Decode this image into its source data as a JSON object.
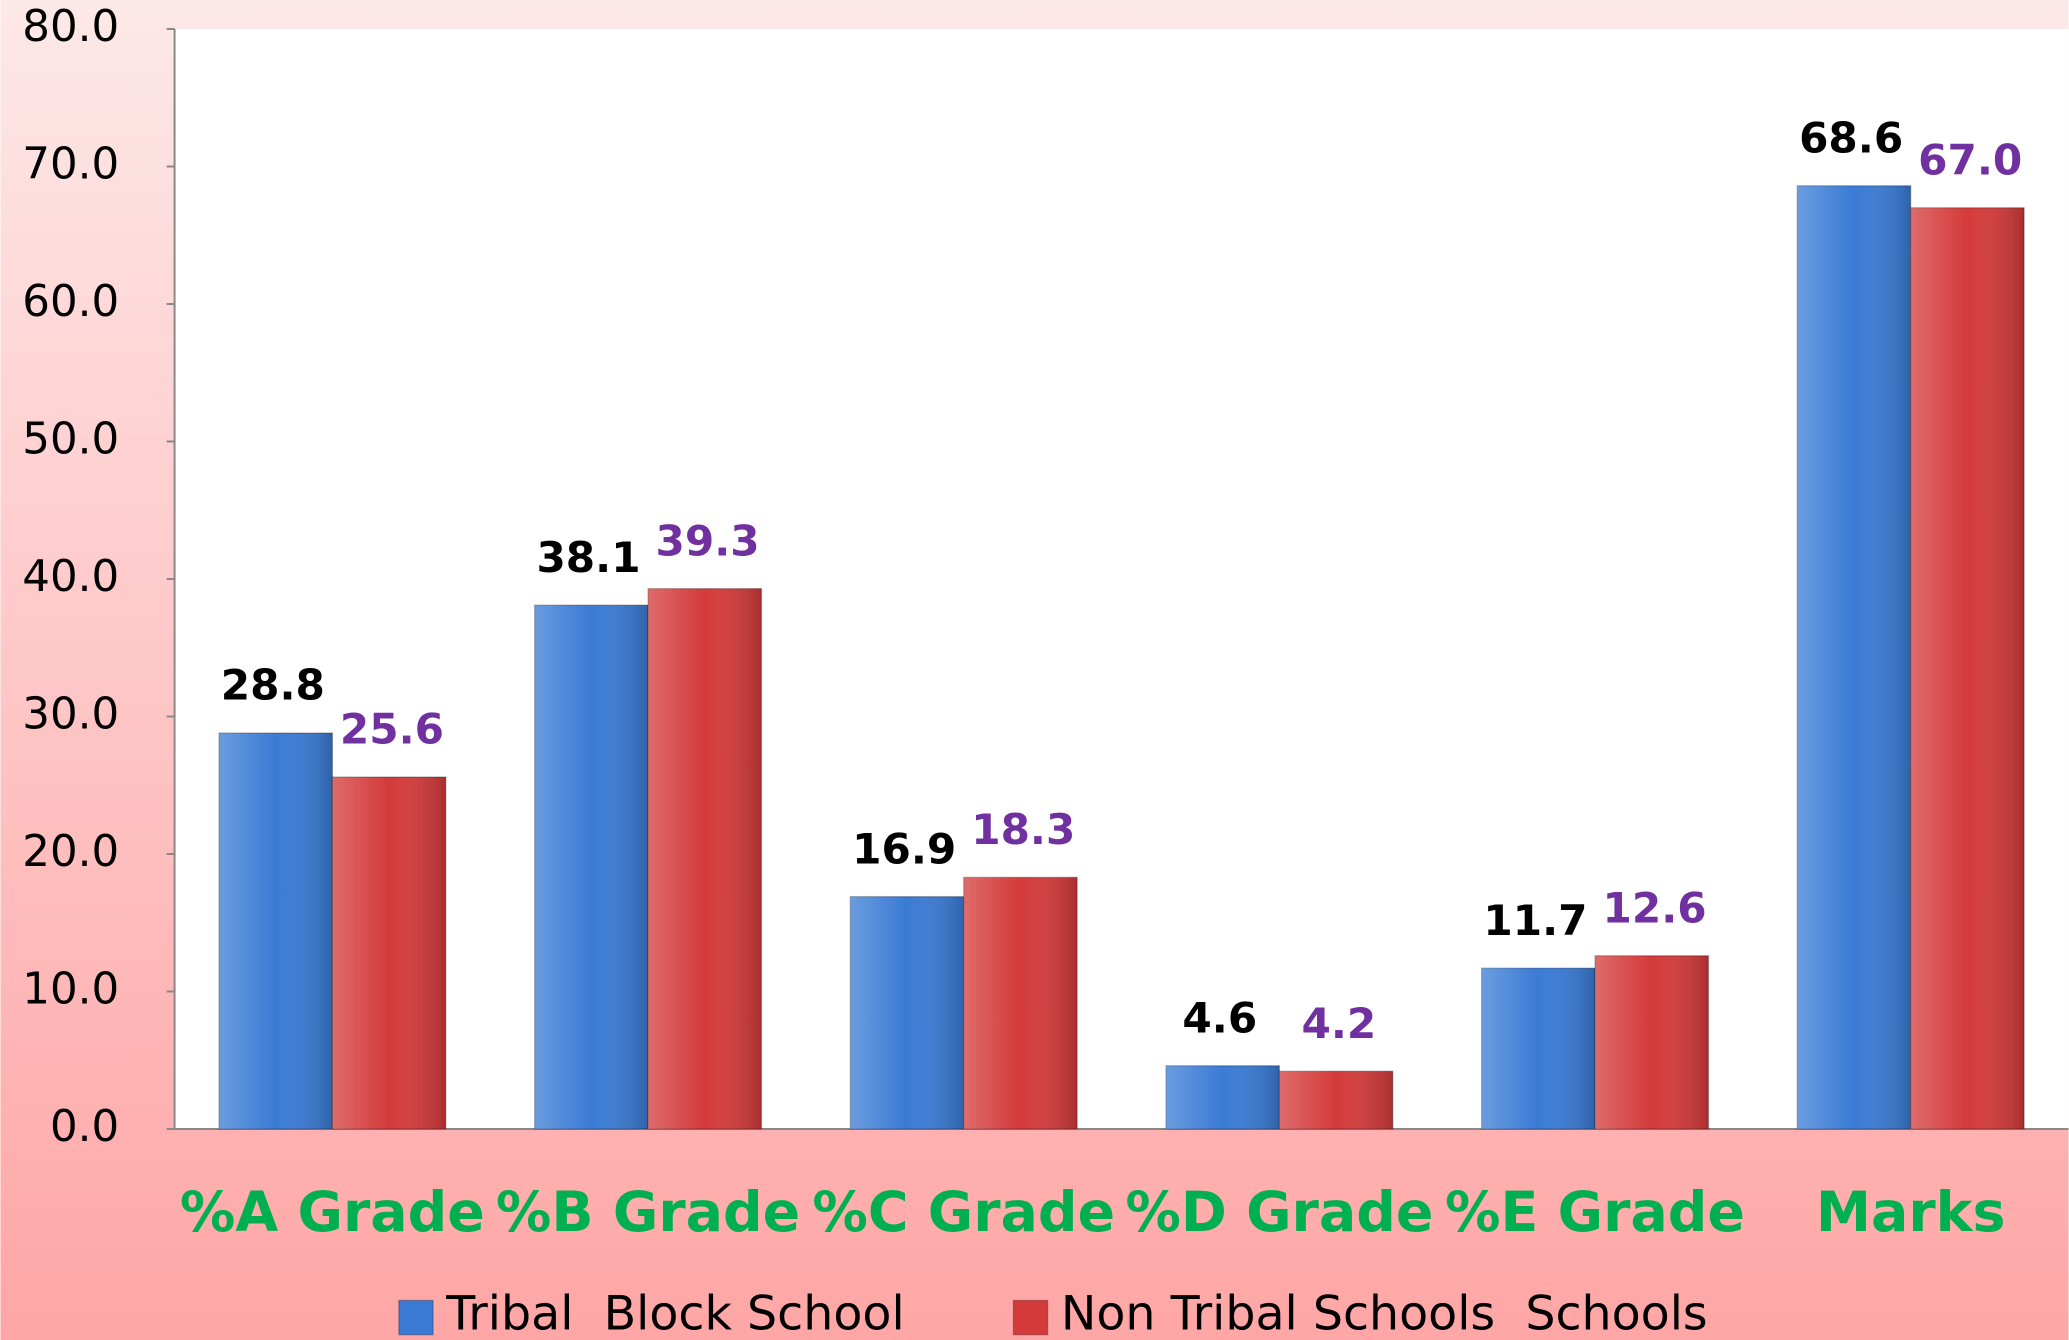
{
  "chart_data": {
    "type": "bar",
    "categories": [
      "%A Grade",
      "%B Grade",
      "%C Grade",
      "%D Grade",
      "%E Grade",
      "Marks"
    ],
    "series": [
      {
        "name": "Tribal  Block School",
        "color": "#3a7bd5",
        "label_color": "#000000",
        "values": [
          28.8,
          38.1,
          16.9,
          4.6,
          11.7,
          68.6
        ],
        "value_labels": [
          "28.8",
          "38.1",
          "16.9",
          "4.6",
          "11.7",
          "68.6"
        ]
      },
      {
        "name": "Non Tribal Schools  Schools",
        "color": "#d43a3a",
        "label_color": "#7030a0",
        "values": [
          25.6,
          39.3,
          18.3,
          4.2,
          12.6,
          67.0
        ],
        "value_labels": [
          "25.6",
          "39.3",
          "18.3",
          "4.2",
          "12.6",
          "67.0"
        ]
      }
    ],
    "ylim": [
      0,
      80
    ],
    "yticks": [
      {
        "value": 0,
        "label": "0.0"
      },
      {
        "value": 10,
        "label": "10.0"
      },
      {
        "value": 20,
        "label": "20.0"
      },
      {
        "value": 30,
        "label": "30.0"
      },
      {
        "value": 40,
        "label": "40.0"
      },
      {
        "value": 50,
        "label": "50.0"
      },
      {
        "value": 60,
        "label": "60.0"
      },
      {
        "value": 70,
        "label": "70.0"
      },
      {
        "value": 80,
        "label": "80.0"
      }
    ],
    "legend": "bottom"
  }
}
